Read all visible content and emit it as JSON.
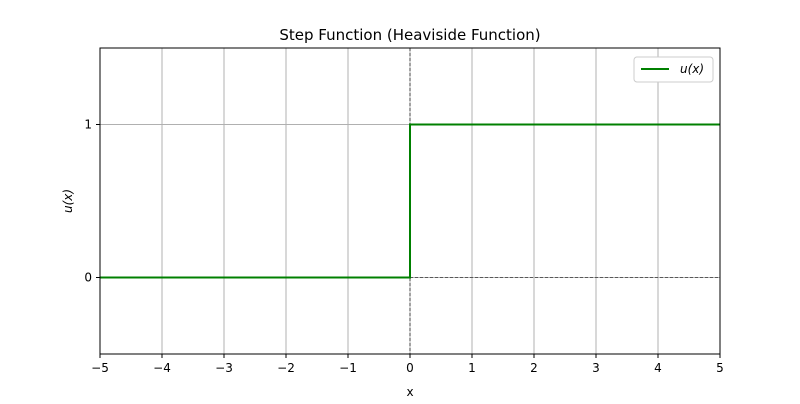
{
  "chart_data": {
    "type": "line",
    "title": "Step Function (Heaviside Function)",
    "xlabel": "x",
    "ylabel": "u(x)",
    "xlim": [
      -5,
      5
    ],
    "ylim": [
      -0.5,
      1.5
    ],
    "x_ticks": [
      -5,
      -4,
      -3,
      -2,
      -1,
      0,
      1,
      2,
      3,
      4,
      5
    ],
    "x_tick_labels": [
      "−5",
      "−4",
      "−3",
      "−2",
      "−1",
      "0",
      "1",
      "2",
      "3",
      "4",
      "5"
    ],
    "y_ticks": [
      0,
      1
    ],
    "y_tick_labels": [
      "0",
      "1"
    ],
    "grid": true,
    "reference_lines": {
      "x": 0,
      "y": 0,
      "style": "dashed"
    },
    "legend_position": "top-right",
    "series": [
      {
        "name": "u(x)",
        "color": "#008000",
        "x": [
          -5,
          0,
          0,
          5
        ],
        "y": [
          0,
          0,
          1,
          1
        ]
      }
    ]
  }
}
